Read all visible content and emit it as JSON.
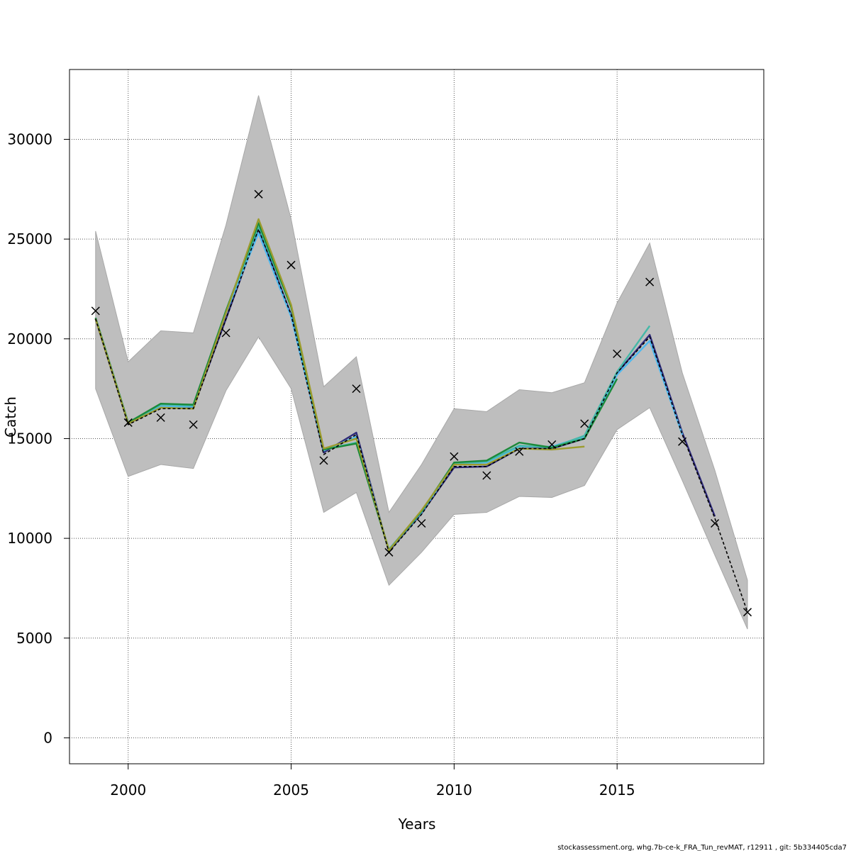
{
  "chart_data": {
    "type": "line",
    "xlabel": "Years",
    "ylabel": "Catch",
    "xlim": [
      1998.2,
      2019.5
    ],
    "ylim": [
      -1300,
      33500
    ],
    "x_ticks": [
      2000,
      2005,
      2010,
      2015
    ],
    "y_ticks": [
      0,
      5000,
      10000,
      15000,
      20000,
      25000,
      30000
    ],
    "grid": true,
    "footer": "stockassessment.org, whg.7b-ce-k_FRA_Tun_revMAT, r12911 , git: 5b334405cda7",
    "confidence_band": {
      "x": [
        1999,
        2000,
        2001,
        2002,
        2003,
        2004,
        2005,
        2006,
        2007,
        2008,
        2009,
        2010,
        2011,
        2012,
        2013,
        2014,
        2015,
        2016,
        2017,
        2018,
        2019
      ],
      "lower": [
        17500,
        13100,
        13700,
        13500,
        17400,
        20100,
        17500,
        11300,
        12300,
        7650,
        9300,
        11200,
        11300,
        12100,
        12050,
        12650,
        15450,
        16550,
        12900,
        9150,
        5450
      ],
      "upper": [
        25400,
        18850,
        20400,
        20300,
        25700,
        32200,
        26000,
        17600,
        19100,
        11300,
        13700,
        16500,
        16350,
        17450,
        17300,
        17800,
        21800,
        24800,
        18300,
        13400,
        7900
      ],
      "color": "#bebebe"
    },
    "observed": {
      "x": [
        1999,
        2000,
        2001,
        2002,
        2003,
        2004,
        2005,
        2006,
        2007,
        2008,
        2009,
        2010,
        2011,
        2012,
        2013,
        2014,
        2015,
        2016,
        2017,
        2018,
        2019
      ],
      "values": [
        21400,
        15800,
        16050,
        15700,
        20300,
        27250,
        23700,
        13900,
        17500,
        9300,
        10750,
        14100,
        13150,
        14350,
        14700,
        15750,
        19250,
        22850,
        14850,
        10750,
        6300
      ]
    },
    "series": [
      {
        "color": "#000000",
        "dashed": true,
        "x": [
          1999,
          2000,
          2001,
          2002,
          2003,
          2004,
          2005,
          2006,
          2007,
          2008,
          2009,
          2010,
          2011,
          2012,
          2013,
          2014,
          2015,
          2016,
          2017,
          2018,
          2019
        ],
        "values": [
          21000,
          15700,
          16500,
          16500,
          21000,
          25500,
          21200,
          14200,
          15200,
          9300,
          11200,
          13600,
          13600,
          14500,
          14500,
          15000,
          18300,
          20100,
          15200,
          11000,
          6300
        ]
      },
      {
        "color": "#2e2a7a",
        "x": [
          1999,
          2000,
          2001,
          2002,
          2003,
          2004,
          2005,
          2006,
          2007,
          2008,
          2009,
          2010,
          2011,
          2012,
          2013,
          2014,
          2015,
          2016,
          2017,
          2018
        ],
        "values": [
          21000,
          15750,
          16550,
          16550,
          21000,
          25500,
          21200,
          14300,
          15300,
          9350,
          11250,
          13550,
          13600,
          14500,
          14500,
          15000,
          18300,
          20200,
          15300,
          11100
        ]
      },
      {
        "color": "#4fb8ee",
        "x": [
          1999,
          2000,
          2001,
          2002,
          2003,
          2004,
          2005,
          2006,
          2007,
          2008,
          2009,
          2010,
          2011,
          2012,
          2013,
          2014,
          2015,
          2016,
          2017
        ],
        "values": [
          21050,
          15800,
          16600,
          16600,
          21300,
          25300,
          21100,
          14400,
          15100,
          9400,
          11300,
          13700,
          13800,
          14600,
          14600,
          15100,
          18200,
          19900,
          15200
        ]
      },
      {
        "color": "#45b8a8",
        "x": [
          1999,
          2000,
          2001,
          2002,
          2003,
          2004,
          2005,
          2006,
          2007,
          2008,
          2009,
          2010,
          2011,
          2012,
          2013,
          2014,
          2015,
          2016
        ],
        "values": [
          21050,
          15800,
          16700,
          16650,
          21400,
          25600,
          21600,
          14450,
          14800,
          9450,
          11350,
          13750,
          13850,
          14650,
          14550,
          15150,
          18350,
          20650
        ]
      },
      {
        "color": "#1a8a3a",
        "x": [
          1999,
          2000,
          2001,
          2002,
          2003,
          2004,
          2005,
          2006,
          2007,
          2008,
          2009,
          2010,
          2011,
          2012,
          2013,
          2014,
          2015
        ],
        "values": [
          21050,
          15800,
          16750,
          16700,
          21400,
          25800,
          21600,
          14450,
          14750,
          9400,
          11350,
          13800,
          13900,
          14800,
          14550,
          15000,
          18000
        ]
      },
      {
        "color": "#9c9c2e",
        "x": [
          1999,
          2000,
          2001,
          2002,
          2003,
          2004,
          2005,
          2006,
          2007,
          2008,
          2009,
          2010,
          2011,
          2012,
          2013,
          2014
        ],
        "values": [
          21000,
          15750,
          16550,
          16500,
          21300,
          26000,
          21700,
          14500,
          15000,
          9400,
          11400,
          13700,
          13700,
          14500,
          14450,
          14600
        ]
      }
    ]
  }
}
